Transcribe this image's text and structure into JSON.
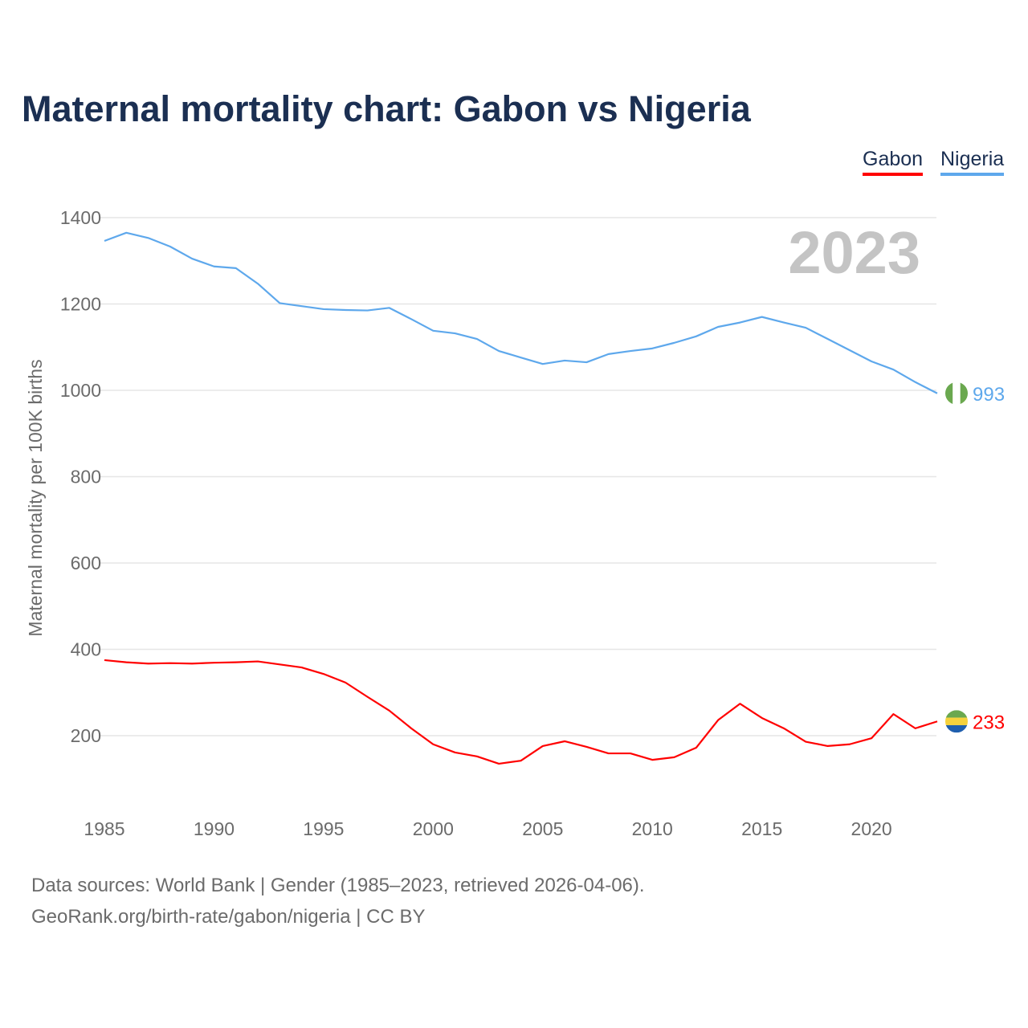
{
  "title": "Maternal mortality chart: Gabon vs Nigeria",
  "legend": {
    "gabon": "Gabon",
    "nigeria": "Nigeria"
  },
  "year_label": "2023",
  "footer": {
    "line1": "Data sources: World Bank | Gender (1985–2023, retrieved 2026-04-06).",
    "line2": "GeoRank.org/birth-rate/gabon/nigeria | CC BY"
  },
  "chart_data": {
    "type": "line",
    "title": "Maternal mortality chart: Gabon vs Nigeria",
    "xlabel": "",
    "ylabel": "Maternal mortality per 100K births",
    "xlim": [
      1985,
      2023
    ],
    "ylim": [
      0,
      1450
    ],
    "xticks": [
      1985,
      1990,
      1995,
      2000,
      2005,
      2010,
      2015,
      2020
    ],
    "yticks": [
      200,
      400,
      600,
      800,
      1000,
      1200,
      1400
    ],
    "grid": true,
    "legend_position": "top-right",
    "x": [
      1985,
      1986,
      1987,
      1988,
      1989,
      1990,
      1991,
      1992,
      1993,
      1994,
      1995,
      1996,
      1997,
      1998,
      1999,
      2000,
      2001,
      2002,
      2003,
      2004,
      2005,
      2006,
      2007,
      2008,
      2009,
      2010,
      2011,
      2012,
      2013,
      2014,
      2015,
      2016,
      2017,
      2018,
      2019,
      2020,
      2021,
      2022,
      2023
    ],
    "series": [
      {
        "name": "Gabon",
        "color": "#ff0000",
        "end_label": "233",
        "values": [
          375,
          370,
          367,
          368,
          367,
          369,
          370,
          372,
          365,
          358,
          343,
          323,
          290,
          258,
          217,
          180,
          161,
          152,
          135,
          142,
          176,
          187,
          174,
          159,
          159,
          144,
          150,
          172,
          236,
          274,
          241,
          217,
          186,
          176,
          180,
          194,
          250,
          217,
          233
        ]
      },
      {
        "name": "Nigeria",
        "color": "#5ea8ec",
        "end_label": "993",
        "values": [
          1346,
          1365,
          1353,
          1333,
          1305,
          1287,
          1283,
          1247,
          1202,
          1195,
          1188,
          1186,
          1185,
          1191,
          1165,
          1138,
          1132,
          1119,
          1091,
          1076,
          1061,
          1069,
          1065,
          1084,
          1091,
          1097,
          1110,
          1125,
          1147,
          1157,
          1170,
          1157,
          1145,
          1119,
          1093,
          1067,
          1048,
          1019,
          993
        ]
      }
    ]
  }
}
